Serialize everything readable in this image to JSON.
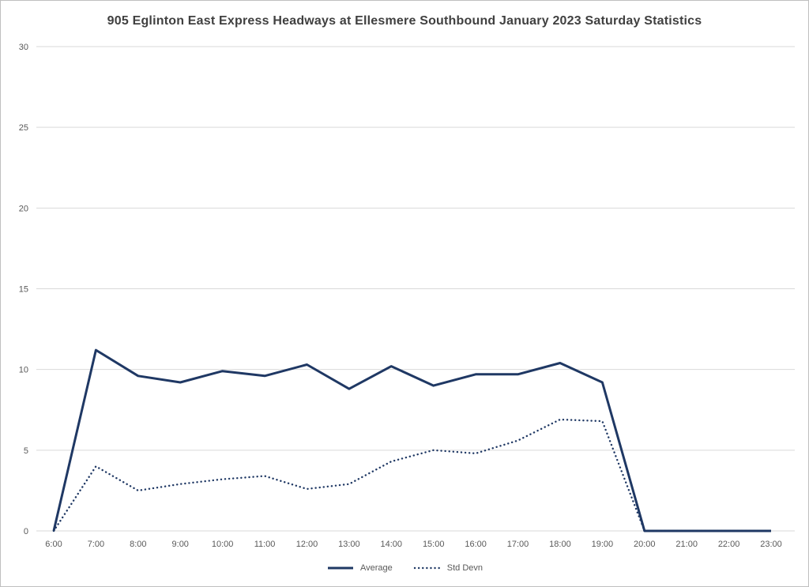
{
  "title": "905 Eglinton East Express Headways at Ellesmere Southbound January 2023 Saturday Statistics",
  "colors": {
    "line": "#1f3864",
    "grid": "#d9d9d9",
    "axis_text": "#595959",
    "title_text": "#404040",
    "border": "#bfbfbf"
  },
  "legend": [
    {
      "label": "Average",
      "style": "solid"
    },
    {
      "label": "Std Devn",
      "style": "dotted"
    }
  ],
  "chart_data": {
    "type": "line",
    "title": "905 Eglinton East Express Headways at Ellesmere Southbound January 2023 Saturday Statistics",
    "xlabel": "",
    "ylabel": "",
    "ylim": [
      0,
      30
    ],
    "yticks": [
      0,
      5,
      10,
      15,
      20,
      25,
      30
    ],
    "grid": true,
    "legend_position": "bottom",
    "categories": [
      "6:00",
      "7:00",
      "8:00",
      "9:00",
      "10:00",
      "11:00",
      "12:00",
      "13:00",
      "14:00",
      "15:00",
      "16:00",
      "17:00",
      "18:00",
      "19:00",
      "20:00",
      "21:00",
      "22:00",
      "23:00"
    ],
    "series": [
      {
        "name": "Average",
        "style": "solid",
        "values": [
          0,
          11.2,
          9.6,
          9.2,
          9.9,
          9.6,
          10.3,
          8.8,
          10.2,
          9.0,
          9.7,
          9.7,
          10.4,
          9.2,
          0,
          0,
          0,
          0
        ]
      },
      {
        "name": "Std Devn",
        "style": "dotted",
        "values": [
          0,
          4.0,
          2.5,
          2.9,
          3.2,
          3.4,
          2.6,
          2.9,
          4.3,
          5.0,
          4.8,
          5.6,
          6.9,
          6.8,
          0,
          0,
          0,
          0
        ]
      }
    ]
  }
}
